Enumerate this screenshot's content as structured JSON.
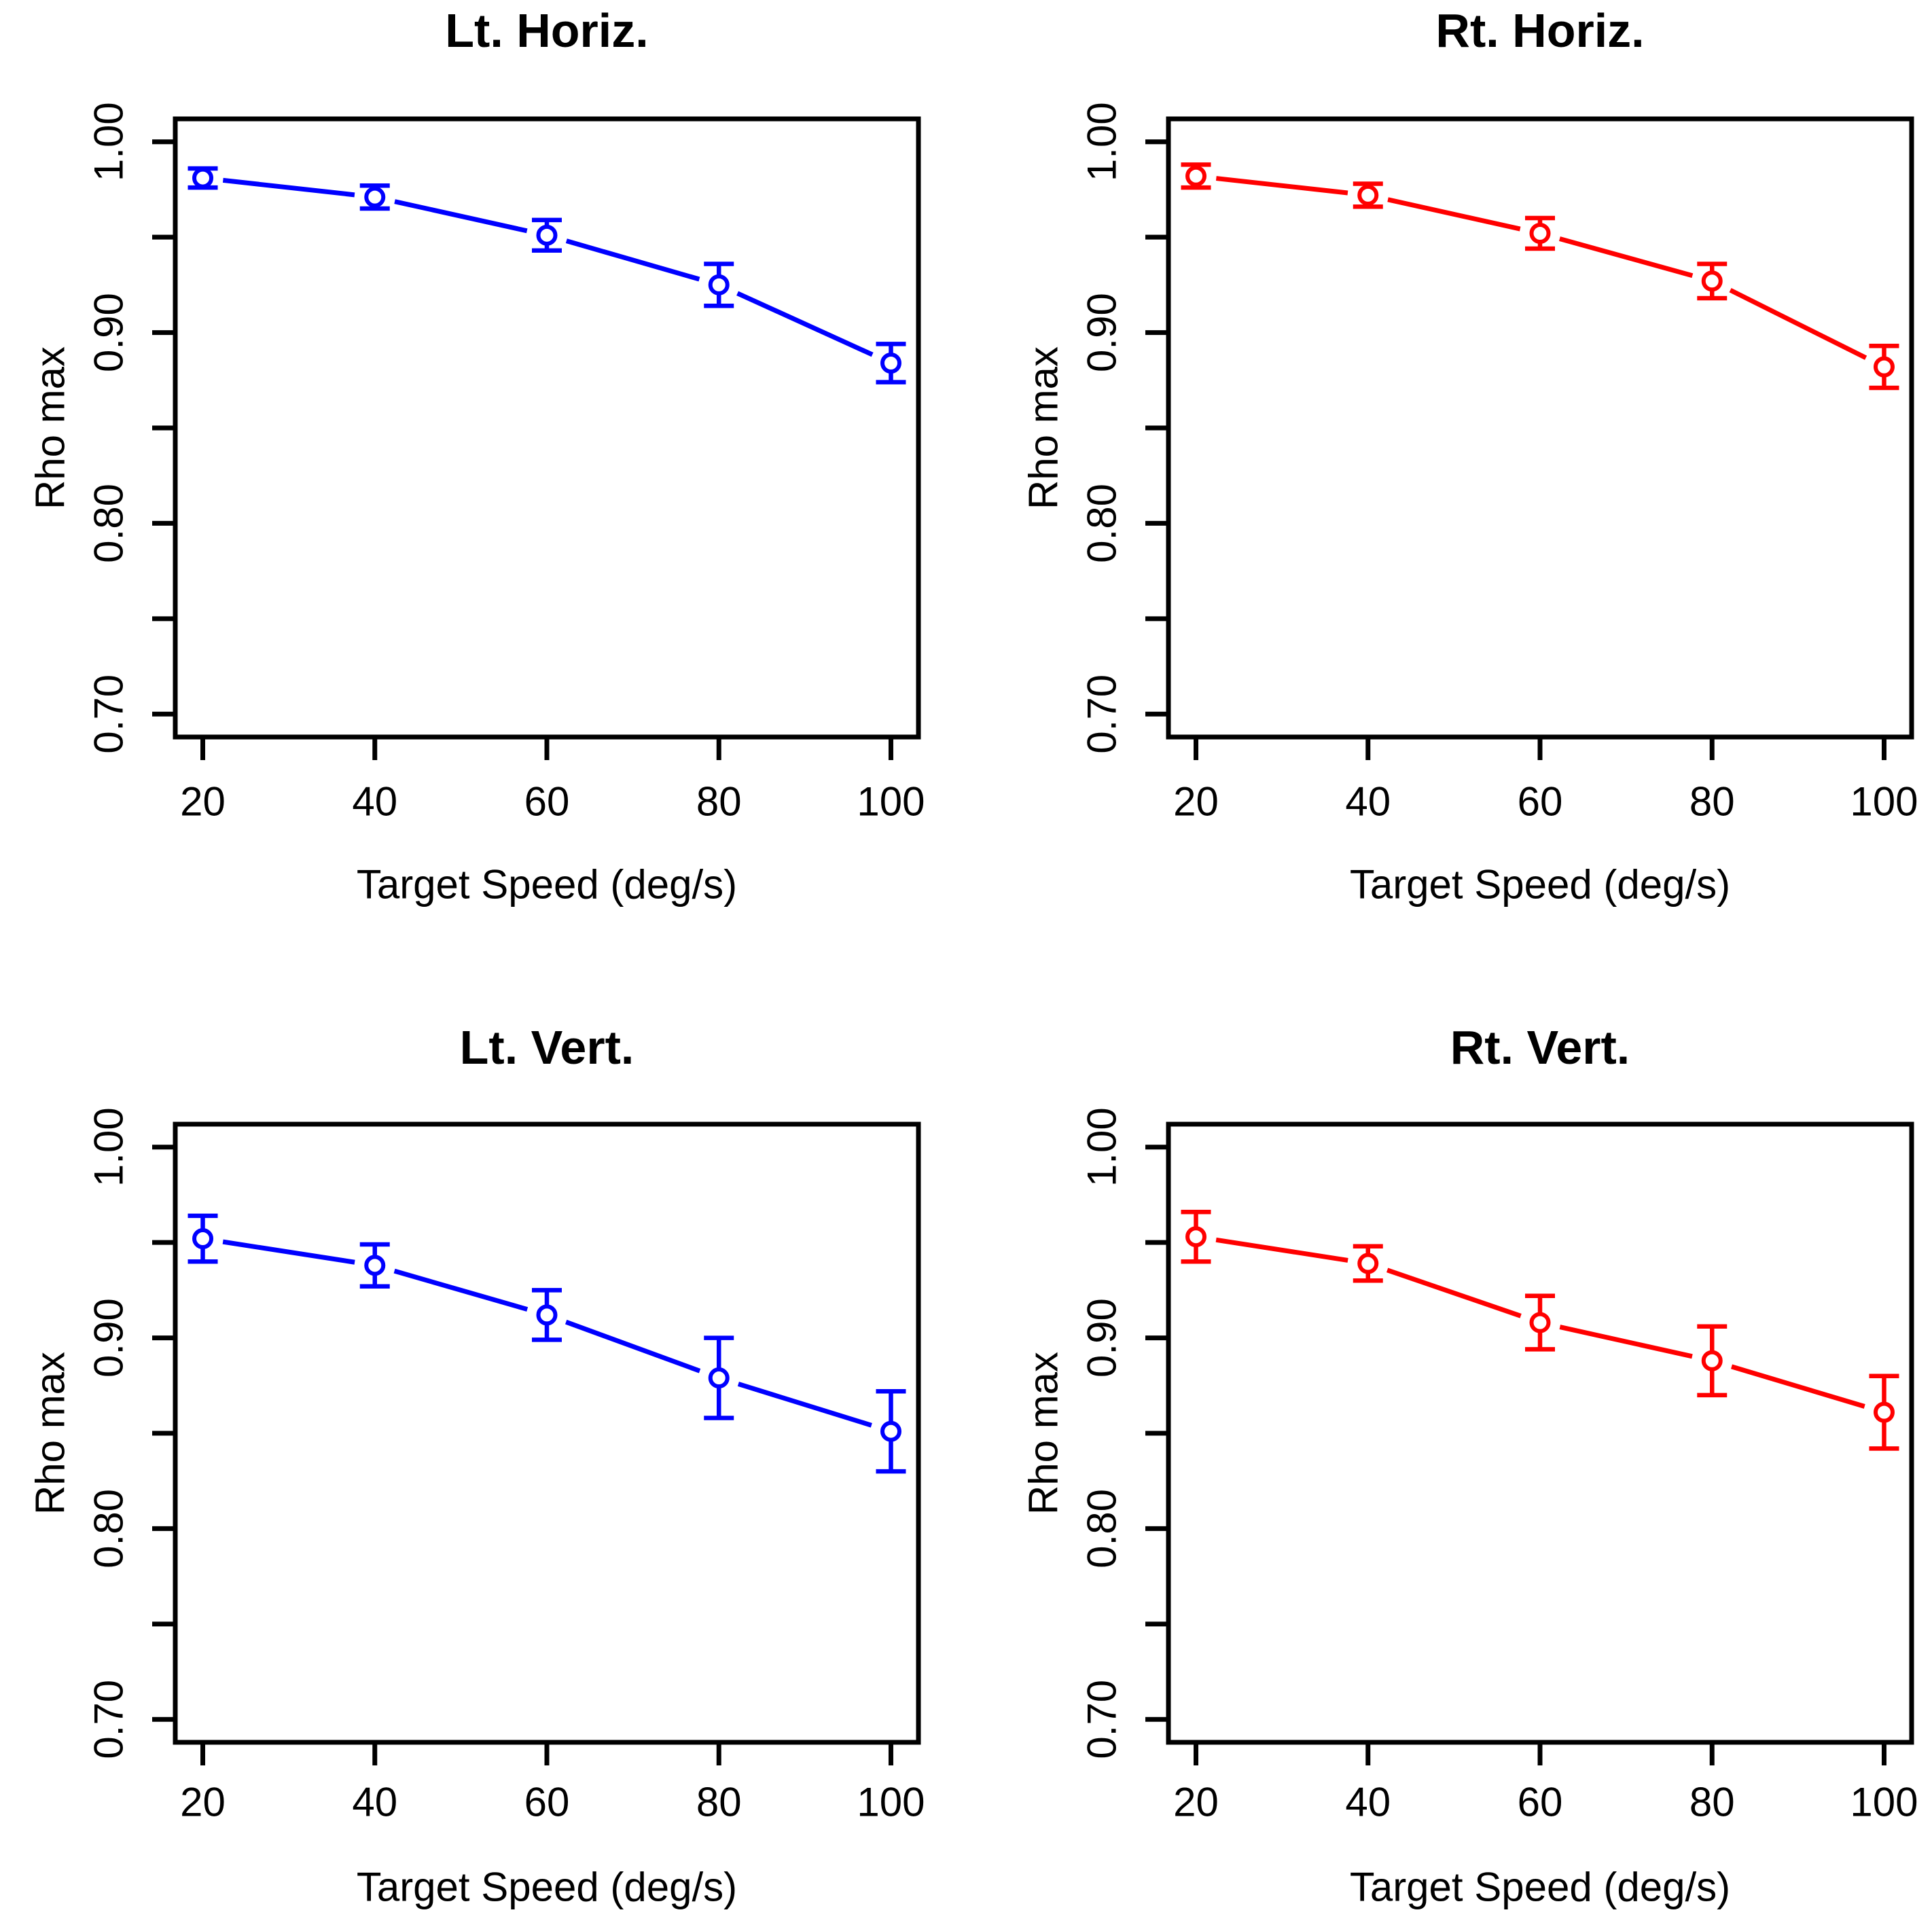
{
  "figure": {
    "background": "#FFFFFF",
    "layout": "2x2-grid",
    "x_axis_label": "Target Speed (deg/s)",
    "y_axis_label": "Rho max",
    "x_tick_labels": [
      "20",
      "40",
      "60",
      "80",
      "100"
    ],
    "y_tick_labels": [
      "0.70",
      "0.80",
      "0.90",
      "1.00"
    ],
    "colors": {
      "left_eye_series": "#0000FF",
      "right_eye_series": "#FF0000",
      "axis": "#000000"
    }
  },
  "chart_data": [
    {
      "type": "line",
      "position": "top-left",
      "title": "Lt. Horiz.",
      "color": "#0000FF",
      "xlabel": "Target Speed (deg/s)",
      "ylabel": "Rho max",
      "x": [
        20,
        40,
        60,
        80,
        100
      ],
      "y": [
        0.981,
        0.971,
        0.951,
        0.925,
        0.884
      ],
      "yerr": [
        0.005,
        0.006,
        0.008,
        0.011,
        0.01
      ],
      "xlim": [
        16.8,
        103.2
      ],
      "ylim": [
        0.688,
        1.012
      ],
      "x_ticks": [
        20,
        40,
        60,
        80,
        100
      ],
      "y_major_ticks": [
        0.7,
        0.8,
        0.9,
        1.0
      ],
      "y_minor_ticks": [
        0.75,
        0.85,
        0.95
      ],
      "grid": false,
      "marker": "open-circle",
      "error_caps": true
    },
    {
      "type": "line",
      "position": "top-right",
      "title": "Rt. Horiz.",
      "color": "#FF0000",
      "xlabel": "Target Speed (deg/s)",
      "ylabel": "Rho max",
      "x": [
        20,
        40,
        60,
        80,
        100
      ],
      "y": [
        0.982,
        0.972,
        0.952,
        0.927,
        0.882
      ],
      "yerr": [
        0.006,
        0.006,
        0.008,
        0.009,
        0.011
      ],
      "xlim": [
        16.8,
        103.2
      ],
      "ylim": [
        0.688,
        1.012
      ],
      "x_ticks": [
        20,
        40,
        60,
        80,
        100
      ],
      "y_major_ticks": [
        0.7,
        0.8,
        0.9,
        1.0
      ],
      "y_minor_ticks": [
        0.75,
        0.85,
        0.95
      ],
      "grid": false,
      "marker": "open-circle",
      "error_caps": true
    },
    {
      "type": "line",
      "position": "bottom-left",
      "title": "Lt. Vert.",
      "color": "#0000FF",
      "xlabel": "Target Speed (deg/s)",
      "ylabel": "Rho max",
      "x": [
        20,
        40,
        60,
        80,
        100
      ],
      "y": [
        0.952,
        0.938,
        0.912,
        0.879,
        0.851
      ],
      "yerr": [
        0.012,
        0.011,
        0.013,
        0.021,
        0.021
      ],
      "xlim": [
        16.8,
        103.2
      ],
      "ylim": [
        0.688,
        1.012
      ],
      "x_ticks": [
        20,
        40,
        60,
        80,
        100
      ],
      "y_major_ticks": [
        0.7,
        0.8,
        0.9,
        1.0
      ],
      "y_minor_ticks": [
        0.75,
        0.85,
        0.95
      ],
      "grid": false,
      "marker": "open-circle",
      "error_caps": true
    },
    {
      "type": "line",
      "position": "bottom-right",
      "title": "Rt. Vert.",
      "color": "#FF0000",
      "xlabel": "Target Speed (deg/s)",
      "ylabel": "Rho max",
      "x": [
        20,
        40,
        60,
        80,
        100
      ],
      "y": [
        0.953,
        0.939,
        0.908,
        0.888,
        0.861
      ],
      "yerr": [
        0.013,
        0.009,
        0.014,
        0.018,
        0.019
      ],
      "xlim": [
        16.8,
        103.2
      ],
      "ylim": [
        0.688,
        1.012
      ],
      "x_ticks": [
        20,
        40,
        60,
        80,
        100
      ],
      "y_major_ticks": [
        0.7,
        0.8,
        0.9,
        1.0
      ],
      "y_minor_ticks": [
        0.75,
        0.85,
        0.95
      ],
      "grid": false,
      "marker": "open-circle",
      "error_caps": true
    }
  ]
}
